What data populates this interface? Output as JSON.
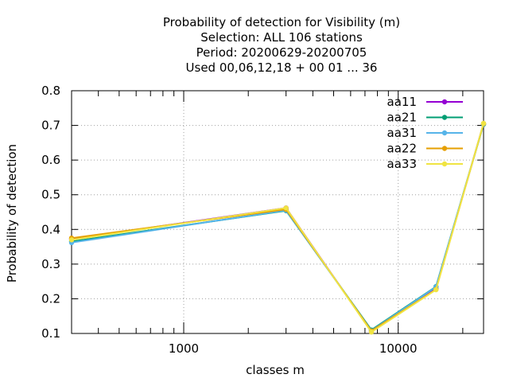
{
  "chart_data": {
    "type": "line",
    "title_lines": [
      "Probability of detection  for Visibility (m)",
      "Selection: ALL    106 stations",
      "Period: 20200629-20200705",
      "Used  00,06,12,18 + 00 01 ... 36"
    ],
    "xlabel": "classes m",
    "ylabel": "Probability of detection",
    "x_scale": "log",
    "xlim": [
      300,
      25000
    ],
    "ylim": [
      0.1,
      0.8
    ],
    "x_tick_labels": [
      "1000",
      "10000"
    ],
    "x_tick_values": [
      1000,
      10000
    ],
    "y_tick_labels": [
      "0.1",
      "0.2",
      "0.3",
      "0.4",
      "0.5",
      "0.6",
      "0.7",
      "0.8"
    ],
    "y_tick_values": [
      0.1,
      0.2,
      0.3,
      0.4,
      0.5,
      0.6,
      0.7,
      0.8
    ],
    "grid": true,
    "legend_position": "top-right",
    "x": [
      300,
      3000,
      7500,
      15000,
      25000
    ],
    "series": [
      {
        "name": "aa11",
        "color": "#9400d3",
        "values": [
          0.372,
          0.462,
          0.105,
          0.23,
          0.705
        ]
      },
      {
        "name": "aa21",
        "color": "#009e73",
        "values": [
          0.365,
          0.454,
          0.11,
          0.235,
          0.703
        ]
      },
      {
        "name": "aa31",
        "color": "#56b4e9",
        "values": [
          0.362,
          0.455,
          0.108,
          0.234,
          0.704
        ]
      },
      {
        "name": "aa22",
        "color": "#e69f00",
        "values": [
          0.375,
          0.458,
          0.107,
          0.227,
          0.705
        ]
      },
      {
        "name": "aa33",
        "color": "#f0e442",
        "values": [
          0.37,
          0.462,
          0.104,
          0.226,
          0.706
        ]
      }
    ]
  }
}
